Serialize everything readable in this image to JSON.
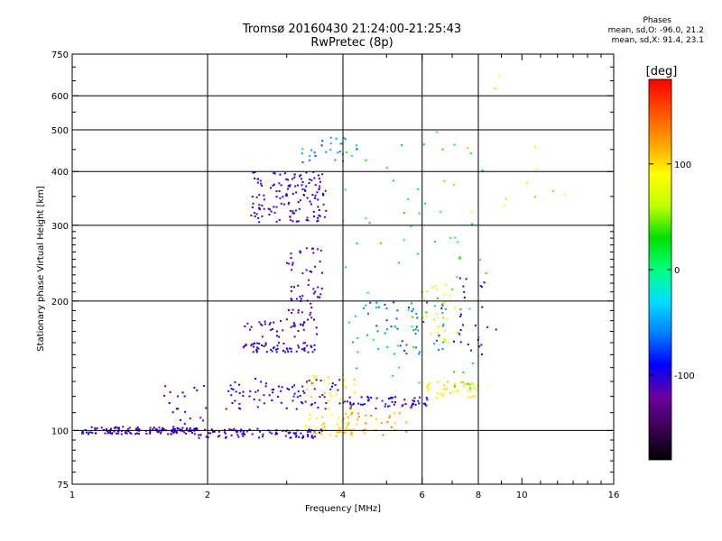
{
  "header": {
    "title_line1": "Tromsø 20160430 21:24:00-21:25:43",
    "title_line2": "RwPretec (8p)"
  },
  "stats": {
    "heading": "Phases",
    "line_o": "mean, sd,O: -96.0, 21.2",
    "line_x": "mean, sd,X:  91.4, 23.1"
  },
  "chart_data": {
    "type": "scatter",
    "xlabel": "Frequency [MHz]",
    "ylabel": "Stationary phase Virtual Height [km]",
    "x_scale": "log",
    "y_scale": "log",
    "xlim": [
      1,
      16
    ],
    "ylim": [
      75,
      750
    ],
    "x_ticks": [
      1,
      2,
      4,
      6,
      8,
      10,
      16
    ],
    "x_major_grid": [
      2,
      4,
      6,
      8
    ],
    "y_ticks": [
      75,
      100,
      200,
      300,
      400,
      500,
      600,
      750
    ],
    "y_grid": [
      100,
      200,
      300,
      400,
      500,
      600
    ],
    "colorbar": {
      "label": "[deg]",
      "range": [
        -180,
        180
      ],
      "ticks": [
        -100,
        0,
        100
      ],
      "colors": [
        "#000000",
        "#3a0055",
        "#6a00a0",
        "#0000ff",
        "#0080ff",
        "#00e0ff",
        "#00ff80",
        "#00e000",
        "#c0ff00",
        "#ffff00",
        "#ffa000",
        "#ff5000",
        "#ff0000"
      ]
    },
    "clusters": [
      {
        "x": [
          1.05,
          1.9
        ],
        "y": [
          98,
          102
        ],
        "phase": -110,
        "n": 140
      },
      {
        "x": [
          1.6,
          2.0
        ],
        "y": [
          100,
          128
        ],
        "phase": -100,
        "n": 20
      },
      {
        "x": [
          1.9,
          3.6
        ],
        "y": [
          96,
          101
        ],
        "phase": -105,
        "n": 90
      },
      {
        "x": [
          2.2,
          4.0
        ],
        "y": [
          112,
          132
        ],
        "phase": -100,
        "n": 80
      },
      {
        "x": [
          4.0,
          6.3
        ],
        "y": [
          112,
          120
        ],
        "phase": -95,
        "n": 60
      },
      {
        "x": [
          2.4,
          3.5
        ],
        "y": [
          152,
          160
        ],
        "phase": -105,
        "n": 60
      },
      {
        "x": [
          2.4,
          3.5
        ],
        "y": [
          165,
          180
        ],
        "phase": -110,
        "n": 35
      },
      {
        "x": [
          3.0,
          3.6
        ],
        "y": [
          180,
          270
        ],
        "phase": -110,
        "n": 60
      },
      {
        "x": [
          2.5,
          3.7
        ],
        "y": [
          305,
          400
        ],
        "phase": -100,
        "n": 140
      },
      {
        "x": [
          3.2,
          4.3
        ],
        "y": [
          420,
          480
        ],
        "phase": -60,
        "n": 25
      },
      {
        "x": [
          3.3,
          4.3
        ],
        "y": [
          100,
          135
        ],
        "phase": 90,
        "n": 55
      },
      {
        "x": [
          4.0,
          5.6
        ],
        "y": [
          97,
          110
        ],
        "phase": 120,
        "n": 30
      },
      {
        "x": [
          3.4,
          4.2
        ],
        "y": [
          97,
          101
        ],
        "phase": 100,
        "n": 25
      },
      {
        "x": [
          6.0,
          8.0
        ],
        "y": [
          118,
          130
        ],
        "phase": 95,
        "n": 45
      },
      {
        "x": [
          4.2,
          6.8
        ],
        "y": [
          150,
          200
        ],
        "phase": -60,
        "n": 60
      },
      {
        "x": [
          6.0,
          7.2
        ],
        "y": [
          160,
          220
        ],
        "phase": 90,
        "n": 30
      },
      {
        "x": [
          4.0,
          8.5
        ],
        "y": [
          120,
          500
        ],
        "phase": 20,
        "n": 70
      },
      {
        "x": [
          6.0,
          12.5
        ],
        "y": [
          300,
          680
        ],
        "phase": 100,
        "n": 14
      },
      {
        "x": [
          7.0,
          9.0
        ],
        "y": [
          150,
          230
        ],
        "phase": -100,
        "n": 25
      }
    ]
  }
}
